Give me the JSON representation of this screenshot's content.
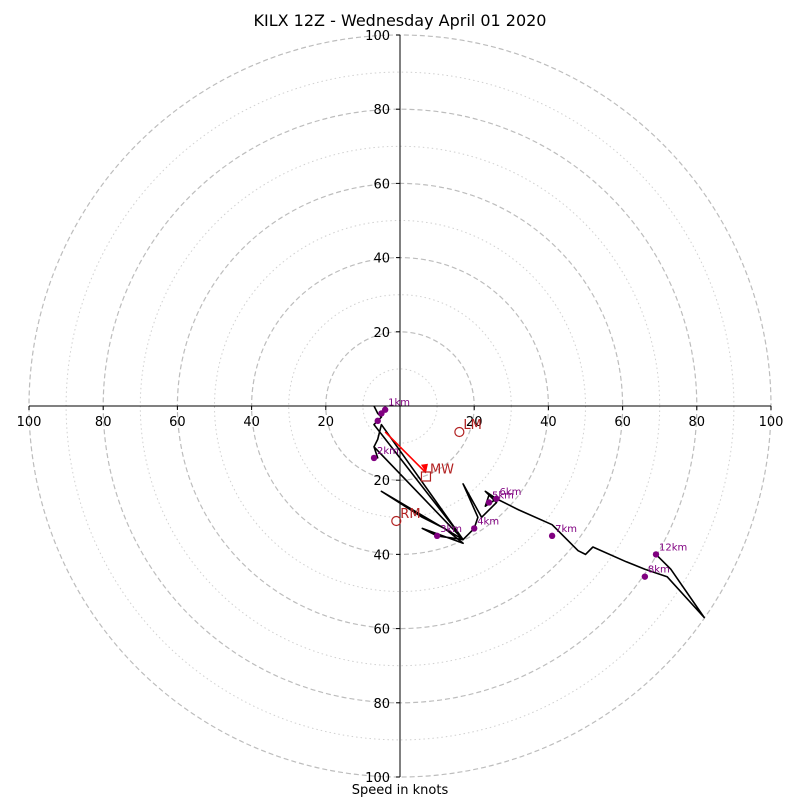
{
  "title": "KILX 12Z - Wednesday April 01 2020",
  "xlabel": "Speed in knots",
  "colors": {
    "hodograph": "#000000",
    "height_marker": "#800080",
    "motion": "#b22222",
    "mean_wind_vector": "#ff0000",
    "grid_major": "#bdbdbd",
    "grid_minor": "#d0d0d0"
  },
  "chart_data": {
    "type": "scatter",
    "subtype": "hodograph",
    "units": "knots",
    "xlim": [
      -100,
      100
    ],
    "ylim": [
      -100,
      100
    ],
    "major_rings": [
      20,
      40,
      60,
      80,
      100
    ],
    "minor_rings": [
      10,
      30,
      50,
      70,
      90
    ],
    "x_tick_labels": [
      "100",
      "80",
      "60",
      "40",
      "20",
      "20",
      "40",
      "60",
      "80",
      "100"
    ],
    "y_tick_labels": [
      "100",
      "80",
      "60",
      "40",
      "20",
      "20",
      "40",
      "60",
      "80",
      "100"
    ],
    "grid": true,
    "hodograph_trace": {
      "u": [
        -7,
        -6,
        -5,
        -6,
        -7,
        14,
        17,
        -5,
        -6,
        -7,
        -6,
        -7,
        17,
        -5,
        6,
        12,
        17,
        6,
        10,
        17,
        20,
        21,
        17,
        22,
        25,
        26,
        23,
        26,
        23,
        24,
        32,
        41,
        48,
        50,
        52,
        61,
        66,
        72,
        82,
        73,
        71,
        69
      ],
      "v": [
        0,
        -2,
        -3,
        -4,
        -5,
        -32,
        -36,
        -5,
        -9,
        -11,
        -14,
        -11,
        -36,
        -23,
        -30,
        -33,
        -37,
        -33,
        -35,
        -36,
        -33,
        -30,
        -21,
        -30,
        -27,
        -26,
        -23,
        -25,
        -27,
        -24,
        -28,
        -32,
        -39,
        -40,
        -38,
        -42,
        -44,
        -46,
        -57,
        -44,
        -42,
        -40
      ]
    },
    "height_markers": [
      {
        "label": "1km",
        "u": -4,
        "v": -1
      },
      {
        "label": "",
        "u": -5,
        "v": -2
      },
      {
        "label": "",
        "u": -6,
        "v": -4
      },
      {
        "label": "2km",
        "u": -7,
        "v": -14
      },
      {
        "label": "3km",
        "u": 10,
        "v": -35
      },
      {
        "label": "4km",
        "u": 20,
        "v": -33
      },
      {
        "label": "5km",
        "u": 24,
        "v": -26
      },
      {
        "label": "6km",
        "u": 26,
        "v": -25
      },
      {
        "label": "7km",
        "u": 41,
        "v": -35
      },
      {
        "label": "8km",
        "u": 66,
        "v": -46
      },
      {
        "label": "12km",
        "u": 69,
        "v": -40
      }
    ],
    "storm_motion": [
      {
        "label": "LM",
        "u": 16,
        "v": -7
      },
      {
        "label": "RM",
        "u": -1,
        "v": -31
      },
      {
        "label": "MW",
        "u": 7,
        "v": -19
      }
    ],
    "mean_wind_vector": {
      "u_start": -4,
      "v_start": -7,
      "u_end": 7,
      "v_end": -18
    }
  }
}
